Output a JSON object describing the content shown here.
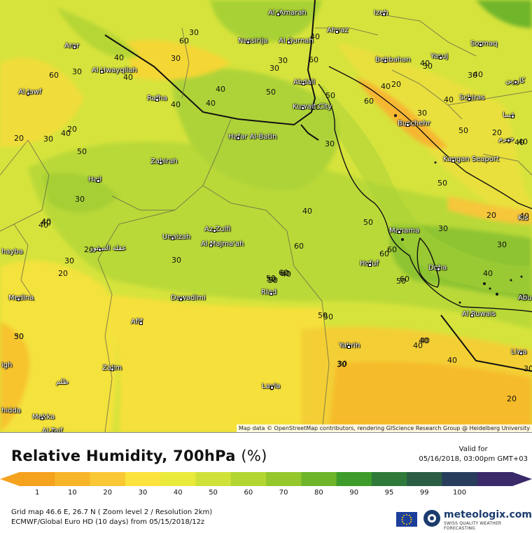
{
  "map": {
    "cities": [
      {
        "name": "Al 'Amarah",
        "dot": true
      },
      {
        "name": "Izeh",
        "dot": true
      },
      {
        "name": "Arar",
        "dot": true
      },
      {
        "name": "Nassirija",
        "dot": true
      },
      {
        "name": "Al Qurnah",
        "dot": true
      },
      {
        "name": "Ahvaz",
        "dot": true
      },
      {
        "name": "Sormaq",
        "dot": true
      },
      {
        "name": "Yasuj",
        "dot": true
      },
      {
        "name": "Behbahan",
        "dot": true
      },
      {
        "name": "Al Uwayqilah",
        "dot": true
      },
      {
        "name": "Abdali",
        "dot": true
      },
      {
        "name": "Al Jawf",
        "dot": true
      },
      {
        "name": "Rafha",
        "dot": true
      },
      {
        "name": "Kuwait City",
        "dot": true
      },
      {
        "name": "Schiras",
        "dot": true
      },
      {
        "name": "Buschehr",
        "dot": true
      },
      {
        "name": "Hafar Al-Batin",
        "dot": true
      },
      {
        "name": "Zabirah",
        "dot": true
      },
      {
        "name": "Kangan Seaport",
        "dot": true
      },
      {
        "name": "Hail",
        "dot": true
      },
      {
        "name": "Manama",
        "dot": true
      },
      {
        "name": "Az Zulfi",
        "dot": true
      },
      {
        "name": "Unaizah",
        "dot": true
      },
      {
        "name": "Al Majma'ah",
        "dot": true
      },
      {
        "name": "Hofuf",
        "dot": true
      },
      {
        "name": "Doha",
        "dot": true
      },
      {
        "name": "Rlad",
        "dot": true
      },
      {
        "name": "Dawadimi",
        "dot": true
      },
      {
        "name": "Medina",
        "dot": true
      },
      {
        "name": "Afif",
        "dot": true
      },
      {
        "name": "Al Ruwais",
        "dot": true
      },
      {
        "name": "Yabrin",
        "dot": true
      },
      {
        "name": "Liwa",
        "dot": true
      },
      {
        "name": "Zalim",
        "dot": true
      },
      {
        "name": "Layla",
        "dot": true
      },
      {
        "name": "Mekka",
        "dot": true
      },
      {
        "name": "Al Taif",
        "dot": true
      },
      {
        "name": "hayba",
        "dot": false
      },
      {
        "name": "igh",
        "dot": false
      },
      {
        "name": "hidda",
        "dot": false
      },
      {
        "name": "Abu",
        "dot": false
      },
      {
        "name": "Kis",
        "dot": false
      },
      {
        "name": "عقلة الصقور",
        "dot": true
      },
      {
        "name": "جهرم",
        "dot": true
      },
      {
        "name": "كارزين",
        "dot": true
      },
      {
        "name": "فسا",
        "dot": true
      },
      {
        "name": "ظلم",
        "dot": false
      }
    ],
    "contour_labels": [
      "60",
      "40",
      "60",
      "40",
      "30",
      "30",
      "40",
      "40",
      "60",
      "30",
      "50",
      "40",
      "50",
      "30",
      "40",
      "40",
      "60",
      "30",
      "40",
      "50",
      "20",
      "20",
      "40",
      "30",
      "40",
      "30",
      "50",
      "20",
      "40",
      "30",
      "50",
      "50",
      "40",
      "30",
      "60",
      "30",
      "20",
      "40",
      "60",
      "60",
      "50",
      "30",
      "40",
      "50",
      "40",
      "50",
      "50",
      "40",
      "60",
      "30",
      "20",
      "40",
      "30",
      "20",
      "30",
      "40",
      "50",
      "40",
      "40",
      "30",
      "20",
      "30",
      "40",
      "60",
      "40",
      "60",
      "40",
      "50",
      "20",
      "50",
      "40",
      "20",
      "30",
      "30",
      "60",
      "30"
    ],
    "attribution": "Map data © OpenStreetMap contributors, rendering GIScience Research Group @ Heidelberg University"
  },
  "legend": {
    "title": "Relative Humidity, 700hPa",
    "unit": "(%)",
    "valid_label": "Valid for",
    "valid_time": "05/16/2018, 03:00pm GMT+03",
    "scale_values": [
      "1",
      "10",
      "20",
      "30",
      "40",
      "50",
      "60",
      "70",
      "80",
      "90",
      "95",
      "99",
      "100"
    ],
    "scale_colors": [
      "#f5a21e",
      "#f7b52a",
      "#f9c834",
      "#fbe23c",
      "#e9ea3a",
      "#cfe23a",
      "#b3d632",
      "#94c72c",
      "#6fb52a",
      "#3e9c2a",
      "#2f7a3a",
      "#2b5d44",
      "#283d5c",
      "#3a2a6a"
    ],
    "footer_line1": "Grid map 46.6 E, 26.7 N ( Zoom level 2 / Resolution 2km)",
    "footer_line2": "ECMWF/Global Euro HD (10 days) from 05/15/2018/12z",
    "brand_name": "meteologix.com",
    "brand_tagline": "SWISS QUALITY WEATHER FORECASTING"
  }
}
